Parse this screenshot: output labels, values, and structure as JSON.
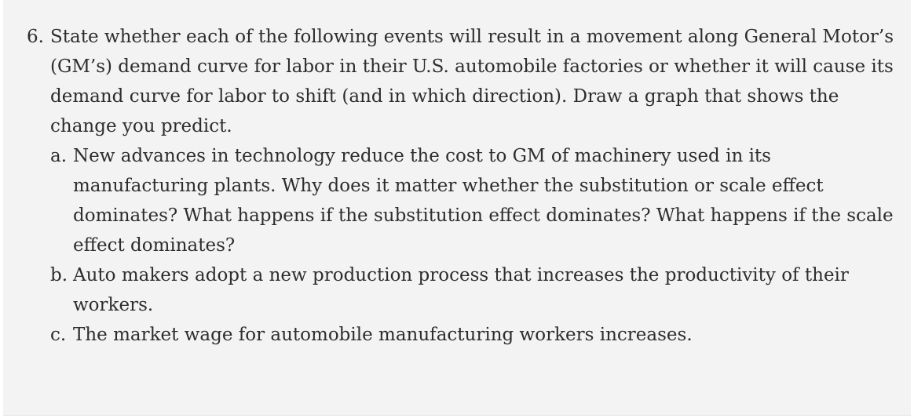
{
  "question": {
    "number": "6.",
    "stem": "State whether each of the following events will result in a movement along General Motor’s (GM’s) demand curve for labor in their U.S. automobile factories or whether it will cause its demand curve for labor to shift (and in which direction). Draw a graph that shows the change you predict.",
    "parts": [
      {
        "letter": "a.",
        "text": "New advances in technology reduce the cost to GM of machinery used in its manufacturing plants. Why does it matter whether the substitution or scale effect dominates? What happens if the substitution effect dominates? What happens if the scale effect dominates?"
      },
      {
        "letter": "b.",
        "text": "Auto makers adopt a new production process that increases the productivity of their workers."
      },
      {
        "letter": "c.",
        "text": "The market wage for automobile manufacturing workers increases."
      }
    ]
  }
}
